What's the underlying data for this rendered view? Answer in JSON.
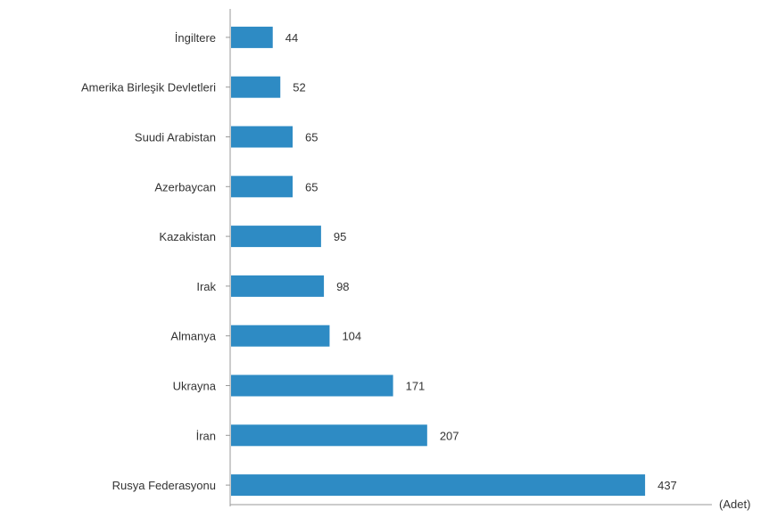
{
  "chart_data": {
    "type": "bar",
    "orientation": "horizontal",
    "categories": [
      "İngiltere",
      "Amerika Birleşik Devletleri",
      "Suudi Arabistan",
      "Azerbaycan",
      "Kazakistan",
      "Irak",
      "Almanya",
      "Ukrayna",
      "İran",
      "Rusya Federasyonu"
    ],
    "values": [
      44,
      52,
      65,
      65,
      95,
      98,
      104,
      171,
      207,
      437
    ],
    "value_labels": [
      "44",
      "52",
      "65",
      "65",
      "95",
      "98",
      "104",
      "171",
      "207",
      "437"
    ],
    "unit_label": "(Adet)",
    "xlim": [
      0,
      500
    ],
    "grid": false,
    "legend": "none",
    "bar_color": "#2e8bc4"
  }
}
